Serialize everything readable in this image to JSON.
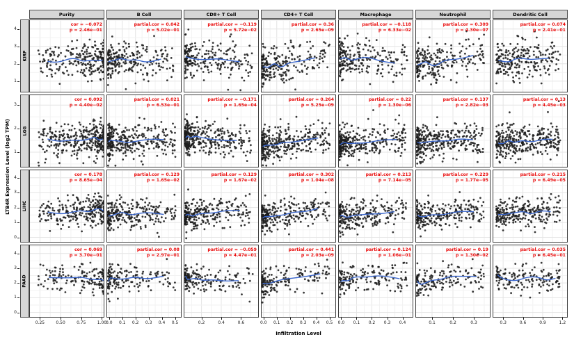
{
  "colors": {
    "strip_bg": "#d6d6d6",
    "strip_border": "#4d4d4d",
    "panel_border": "#3c3c3c",
    "grid_major": "#e4e4e4",
    "grid_minor": "#f2f2f2",
    "point": "#1c1c1c",
    "curve": "#3a66cc",
    "annotation": "#ea0c0c"
  },
  "stat_labels": {
    "p_prefix": "p"
  },
  "chart_data": {
    "type": "scatter",
    "title": "",
    "xlabel": "Infiltration Level",
    "ylabel": "LTB4R Expression Level (log2 TPM)",
    "grid": true,
    "columns": [
      {
        "label": "Purity",
        "stat": "cor",
        "x_ticks": [
          "0.25",
          "0.50",
          "0.75",
          "1.00"
        ],
        "x_tick_vals": [
          0.25,
          0.5,
          0.75,
          1.0
        ],
        "x_domain": [
          0.12,
          1.03
        ],
        "dist": "high"
      },
      {
        "label": "B Cell",
        "stat": "partial.cor",
        "x_ticks": [
          "0.0",
          "0.1",
          "0.2",
          "0.3",
          "0.4",
          "0.5"
        ],
        "x_tick_vals": [
          0,
          0.1,
          0.2,
          0.3,
          0.4,
          0.5
        ],
        "x_domain": [
          -0.02,
          0.55
        ],
        "dist": "low"
      },
      {
        "label": "CD8+ T Cell",
        "stat": "partial.cor",
        "x_ticks": [
          "0.2",
          "0.4",
          "0.6"
        ],
        "x_tick_vals": [
          0.2,
          0.4,
          0.6
        ],
        "x_domain": [
          0.02,
          0.78
        ],
        "dist": "low"
      },
      {
        "label": "CD4+ T Cell",
        "stat": "partial.cor",
        "x_ticks": [
          "0.0",
          "0.1",
          "0.2",
          "0.3",
          "0.4",
          "0.5"
        ],
        "x_tick_vals": [
          0,
          0.1,
          0.2,
          0.3,
          0.4,
          0.5
        ],
        "x_domain": [
          -0.02,
          0.55
        ],
        "dist": "low"
      },
      {
        "label": "Macrophage",
        "stat": "partial.cor",
        "x_ticks": [
          "0.0",
          "0.1",
          "0.2",
          "0.3",
          "0.4"
        ],
        "x_tick_vals": [
          0,
          0.1,
          0.2,
          0.3,
          0.4
        ],
        "x_domain": [
          -0.02,
          0.47
        ],
        "dist": "low"
      },
      {
        "label": "Neutrophil",
        "stat": "partial.cor",
        "x_ticks": [
          "0.1",
          "0.2",
          "0.3"
        ],
        "x_tick_vals": [
          0.1,
          0.2,
          0.3
        ],
        "x_domain": [
          0.02,
          0.38
        ],
        "dist": "low"
      },
      {
        "label": "Dendritic Cell",
        "stat": "partial.cor",
        "x_ticks": [
          "0.3",
          "0.6",
          "0.9",
          "1.2"
        ],
        "x_tick_vals": [
          0.3,
          0.6,
          0.9,
          1.2
        ],
        "x_domain": [
          0.14,
          1.28
        ],
        "dist": "mid"
      }
    ],
    "rows": [
      {
        "label": "KIRP",
        "y_ticks": [
          1,
          2,
          3,
          4
        ],
        "y_domain": [
          0.35,
          4.55
        ],
        "mean": 2.2,
        "sd": 0.62,
        "n": 230
      },
      {
        "label": "LGG",
        "y_ticks": [
          1,
          2,
          3
        ],
        "y_domain": [
          0.35,
          3.45
        ],
        "mean": 1.5,
        "sd": 0.42,
        "n": 330
      },
      {
        "label": "LIHC",
        "y_ticks": [
          0,
          1,
          2,
          3,
          4
        ],
        "y_domain": [
          -0.35,
          4.55
        ],
        "mean": 1.65,
        "sd": 0.58,
        "n": 260
      },
      {
        "label": "PAAD",
        "y_ticks": [
          0,
          1,
          2,
          3,
          4
        ],
        "y_domain": [
          -0.35,
          4.6
        ],
        "mean": 2.3,
        "sd": 0.58,
        "n": 160
      }
    ],
    "panels": [
      {
        "row": "KIRP",
        "col": "Purity",
        "cor": "-0.072",
        "p": "2.46e-01"
      },
      {
        "row": "KIRP",
        "col": "B Cell",
        "cor": "0.042",
        "p": "5.02e-01"
      },
      {
        "row": "KIRP",
        "col": "CD8+ T Cell",
        "cor": "-0.119",
        "p": "5.72e-02"
      },
      {
        "row": "KIRP",
        "col": "CD4+ T Cell",
        "cor": "0.36",
        "p": "2.65e-09"
      },
      {
        "row": "KIRP",
        "col": "Macrophage",
        "cor": "-0.118",
        "p": "6.33e-02"
      },
      {
        "row": "KIRP",
        "col": "Neutrophil",
        "cor": "0.309",
        "p": "4.30e-07"
      },
      {
        "row": "KIRP",
        "col": "Dendritic Cell",
        "cor": "0.074",
        "p": "2.41e-01"
      },
      {
        "row": "LGG",
        "col": "Purity",
        "cor": "0.092",
        "p": "4.40e-02"
      },
      {
        "row": "LGG",
        "col": "B Cell",
        "cor": "0.021",
        "p": "6.53e-01"
      },
      {
        "row": "LGG",
        "col": "CD8+ T Cell",
        "cor": "-0.171",
        "p": "1.65e-04"
      },
      {
        "row": "LGG",
        "col": "CD4+ T Cell",
        "cor": "0.264",
        "p": "5.25e-09"
      },
      {
        "row": "LGG",
        "col": "Macrophage",
        "cor": "0.22",
        "p": "1.30e-06"
      },
      {
        "row": "LGG",
        "col": "Neutrophil",
        "cor": "0.137",
        "p": "2.82e-03"
      },
      {
        "row": "LGG",
        "col": "Dendritic Cell",
        "cor": "0.13",
        "p": "4.45e-03"
      },
      {
        "row": "LIHC",
        "col": "Purity",
        "cor": "0.178",
        "p": "8.65e-04"
      },
      {
        "row": "LIHC",
        "col": "B Cell",
        "cor": "0.129",
        "p": "1.65e-02"
      },
      {
        "row": "LIHC",
        "col": "CD8+ T Cell",
        "cor": "0.129",
        "p": "1.67e-02"
      },
      {
        "row": "LIHC",
        "col": "CD4+ T Cell",
        "cor": "0.302",
        "p": "1.04e-08"
      },
      {
        "row": "LIHC",
        "col": "Macrophage",
        "cor": "0.213",
        "p": "7.14e-05"
      },
      {
        "row": "LIHC",
        "col": "Neutrophil",
        "cor": "0.229",
        "p": "1.77e-05"
      },
      {
        "row": "LIHC",
        "col": "Dendritic Cell",
        "cor": "0.215",
        "p": "6.49e-05"
      },
      {
        "row": "PAAD",
        "col": "Purity",
        "cor": "0.069",
        "p": "3.70e-01"
      },
      {
        "row": "PAAD",
        "col": "B Cell",
        "cor": "0.08",
        "p": "2.97e-01"
      },
      {
        "row": "PAAD",
        "col": "CD8+ T Cell",
        "cor": "-0.059",
        "p": "4.47e-01"
      },
      {
        "row": "PAAD",
        "col": "CD4+ T Cell",
        "cor": "0.441",
        "p": "2.03e-09"
      },
      {
        "row": "PAAD",
        "col": "Macrophage",
        "cor": "0.124",
        "p": "1.06e-01"
      },
      {
        "row": "PAAD",
        "col": "Neutrophil",
        "cor": "0.19",
        "p": "1.30e-02"
      },
      {
        "row": "PAAD",
        "col": "Dendritic Cell",
        "cor": "0.035",
        "p": "6.45e-01"
      }
    ]
  }
}
